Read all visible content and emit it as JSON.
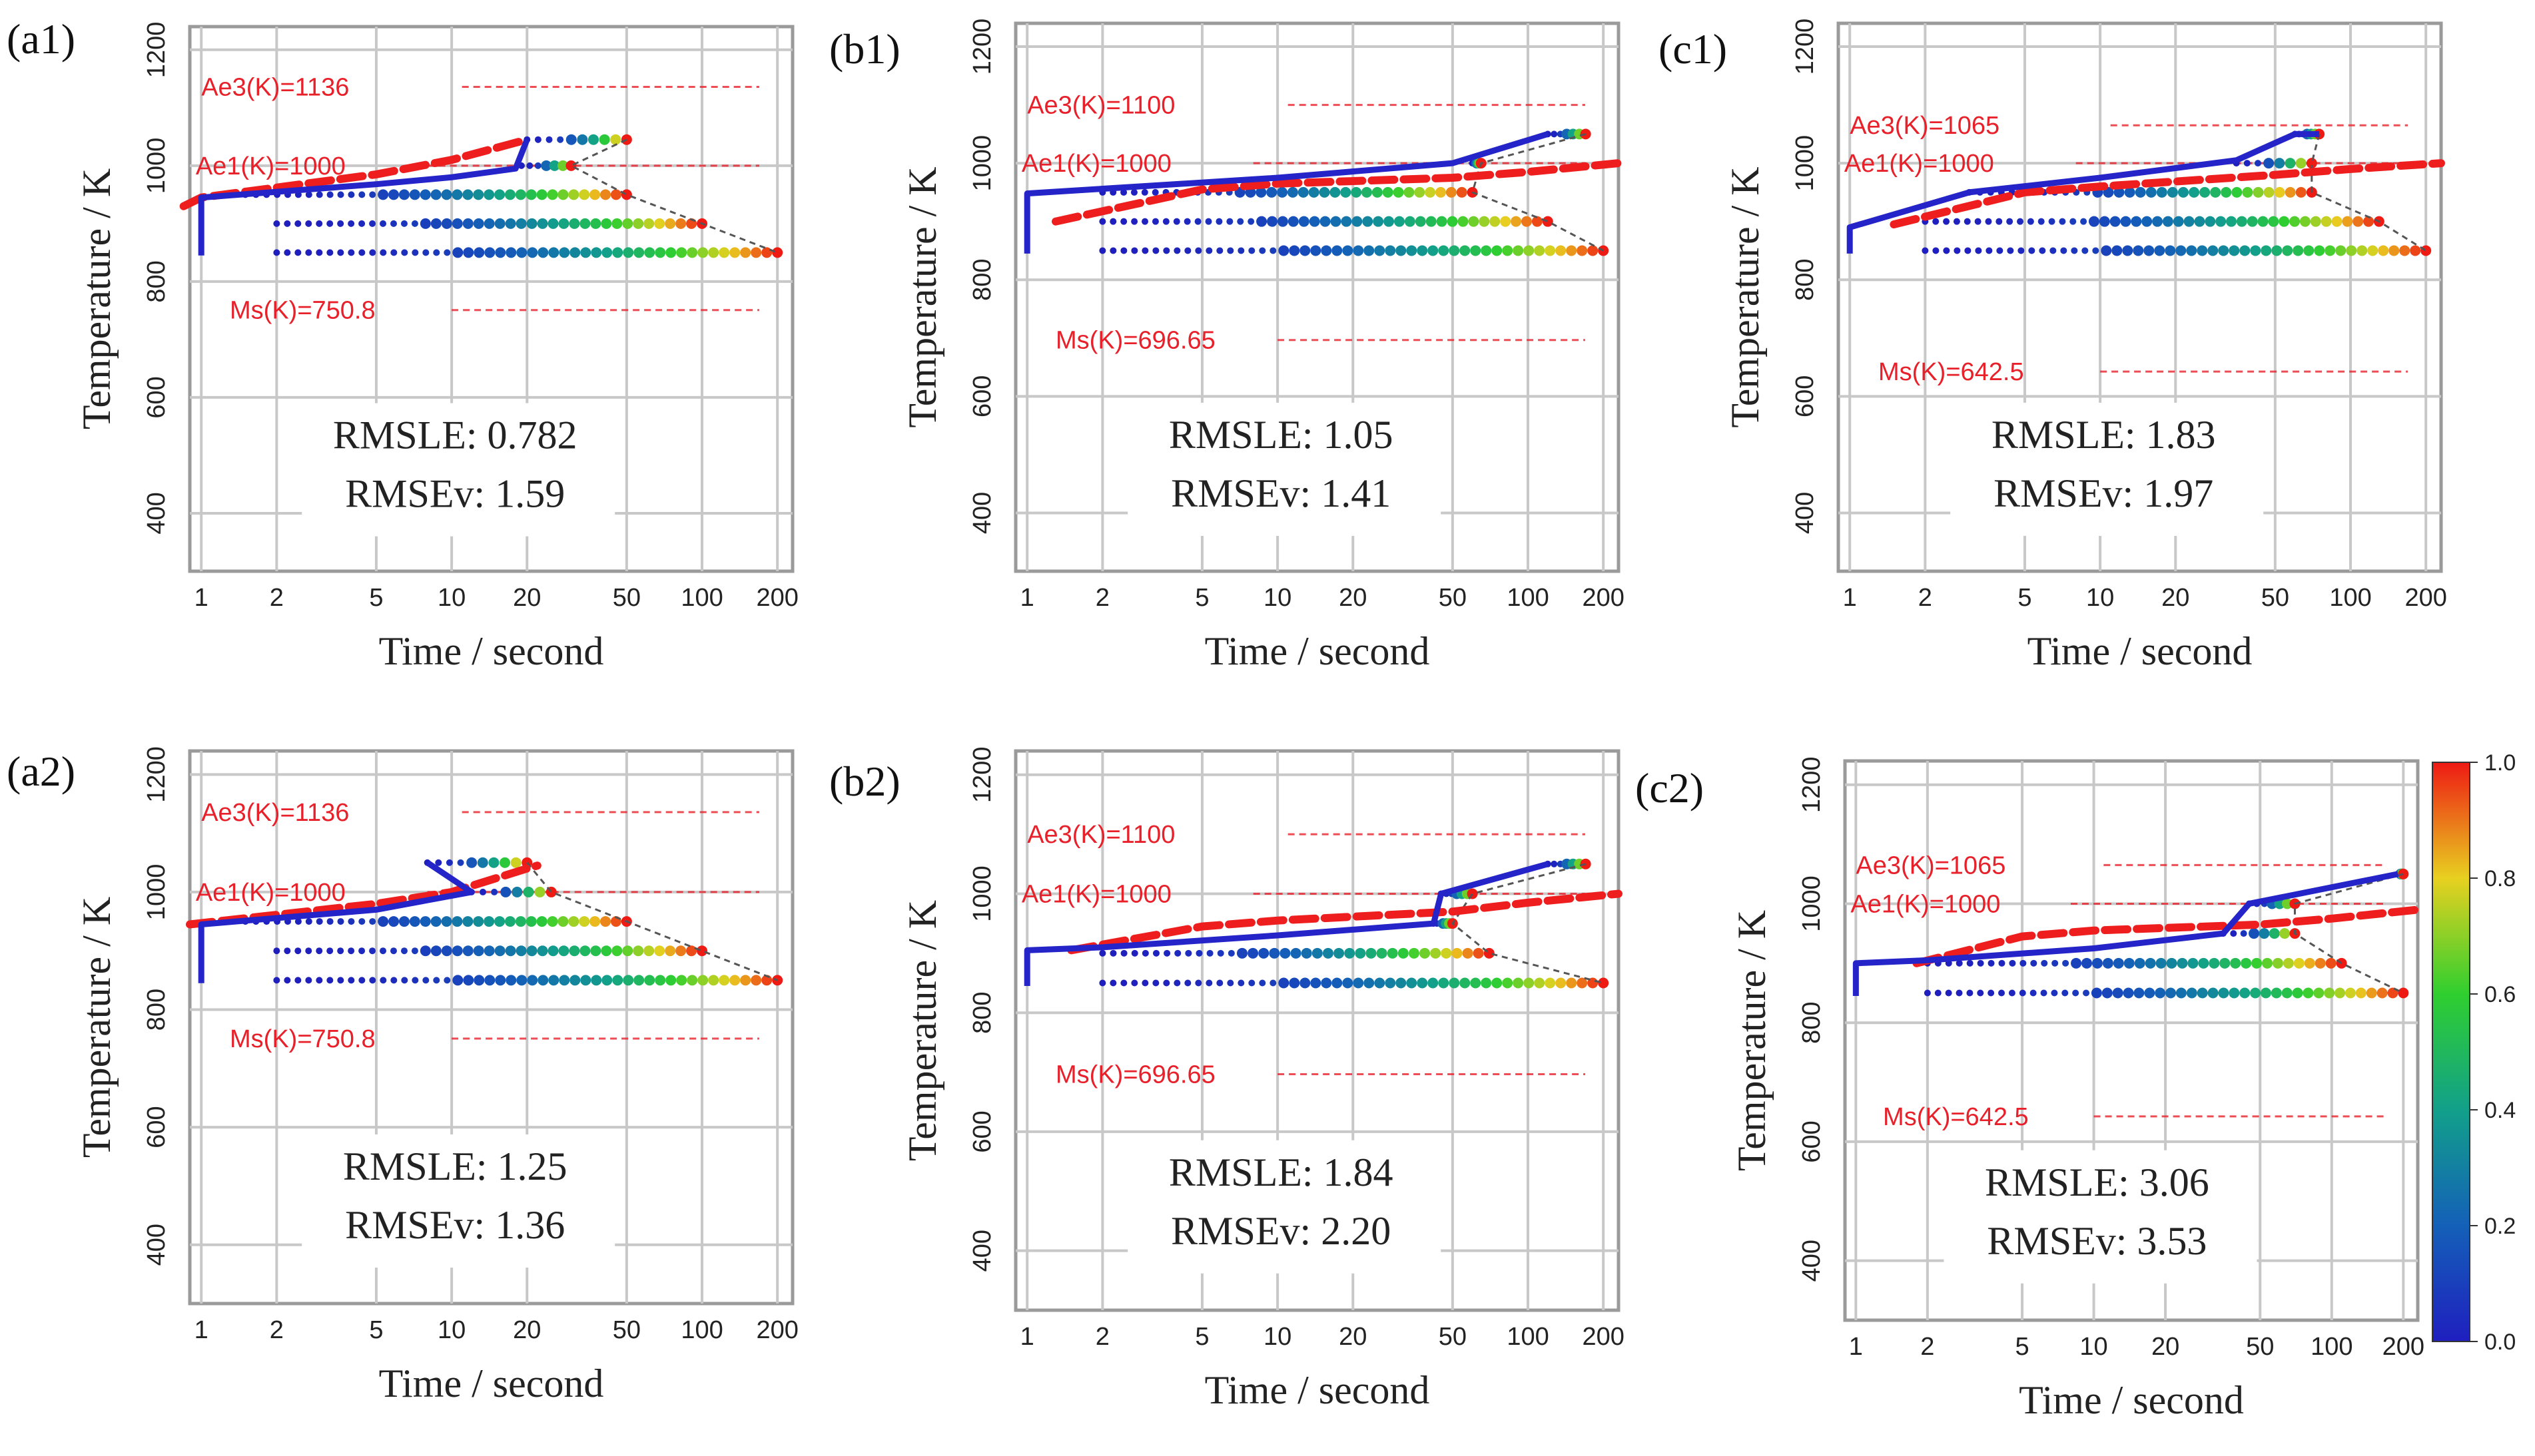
{
  "figure": {
    "x_axis_title": "Time / second",
    "y_axis_title": "Temperature / K",
    "colorbar": {
      "ticks": [
        "0.0",
        "0.2",
        "0.4",
        "0.6",
        "0.8",
        "1.0"
      ],
      "range": [
        0,
        1
      ]
    }
  },
  "chart_data": [
    {
      "type": "line",
      "label": "(a1)",
      "xlim": [
        0.9,
        230
      ],
      "ylim": [
        300,
        1240
      ],
      "x_ticks": [
        1,
        2,
        5,
        10,
        20,
        50,
        100,
        200
      ],
      "x_tick_labels": [
        "1",
        "2",
        "5",
        "10",
        "20",
        "50",
        "100",
        "200"
      ],
      "y_ticks": [
        400,
        600,
        800,
        1000,
        1200
      ],
      "y_tick_labels": [
        "400",
        "600",
        "800",
        "1000",
        "1200"
      ],
      "ae3": {
        "label": "Ae3(K)=1136",
        "value": 1136
      },
      "ae1": {
        "label": "Ae1(K)=1000",
        "value": 1000
      },
      "ms": {
        "label": "Ms(K)=750.8",
        "value": 750.8
      },
      "rmsle": "RMSLE: 0.782",
      "rmsev": "RMSEv: 1.59",
      "red_curve": [
        [
          0.85,
          930
        ],
        [
          1,
          945
        ],
        [
          5,
          985
        ],
        [
          10,
          1010
        ],
        [
          20,
          1045
        ]
      ],
      "blue_curve": [
        [
          1,
          845
        ],
        [
          1,
          945
        ],
        [
          5,
          968
        ],
        [
          10,
          980
        ],
        [
          18,
          995
        ],
        [
          20,
          1045
        ]
      ],
      "transformation_bands": [
        {
          "temp": 1045,
          "t_start": 20,
          "t_end": 50
        },
        {
          "temp": 1000,
          "t_start": 19,
          "t_end": 30
        },
        {
          "temp": 950,
          "t_start": 1.5,
          "t_end": 50
        },
        {
          "temp": 900,
          "t_start": 2,
          "t_end": 100
        },
        {
          "temp": 850,
          "t_start": 2,
          "t_end": 200
        }
      ]
    },
    {
      "type": "line",
      "label": "(b1)",
      "xlim": [
        0.9,
        230
      ],
      "ylim": [
        300,
        1240
      ],
      "x_ticks": [
        1,
        2,
        5,
        10,
        20,
        50,
        100,
        200
      ],
      "x_tick_labels": [
        "1",
        "2",
        "5",
        "10",
        "20",
        "50",
        "100",
        "200"
      ],
      "y_ticks": [
        400,
        600,
        800,
        1000,
        1200
      ],
      "y_tick_labels": [
        "400",
        "600",
        "800",
        "1000",
        "1200"
      ],
      "ae3": {
        "label": "Ae3(K)=1100",
        "value": 1100
      },
      "ae1": {
        "label": "Ae1(K)=1000",
        "value": 1000
      },
      "ms": {
        "label": "Ms(K)=696.65",
        "value": 696.65
      },
      "rmsle": "RMSLE: 1.05",
      "rmsev": "RMSEv: 1.41",
      "red_curve": [
        [
          1.3,
          900
        ],
        [
          5,
          955
        ],
        [
          10,
          965
        ],
        [
          50,
          975
        ],
        [
          100,
          985
        ],
        [
          230,
          1000
        ]
      ],
      "blue_curve": [
        [
          1,
          845
        ],
        [
          1,
          948
        ],
        [
          10,
          975
        ],
        [
          50,
          1000
        ],
        [
          120,
          1050
        ]
      ],
      "transformation_bands": [
        {
          "temp": 1050,
          "t_start": 120,
          "t_end": 170
        },
        {
          "temp": 1000,
          "t_start": 60,
          "t_end": 65
        },
        {
          "temp": 950,
          "t_start": 2,
          "t_end": 60
        },
        {
          "temp": 900,
          "t_start": 2,
          "t_end": 120
        },
        {
          "temp": 850,
          "t_start": 2,
          "t_end": 200
        }
      ]
    },
    {
      "type": "line",
      "label": "(c1)",
      "xlim": [
        0.9,
        230
      ],
      "ylim": [
        300,
        1240
      ],
      "x_ticks": [
        1,
        2,
        5,
        10,
        20,
        50,
        100,
        200
      ],
      "x_tick_labels": [
        "1",
        "2",
        "5",
        "10",
        "20",
        "50",
        "100",
        "200"
      ],
      "y_ticks": [
        400,
        600,
        800,
        1000,
        1200
      ],
      "y_tick_labels": [
        "400",
        "600",
        "800",
        "1000",
        "1200"
      ],
      "ae3": {
        "label": "Ae3(K)=1065",
        "value": 1065
      },
      "ae1": {
        "label": "Ae1(K)=1000",
        "value": 1000
      },
      "ms": {
        "label": "Ms(K)=642.5",
        "value": 642.5
      },
      "rmsle": "RMSLE: 1.83",
      "rmsev": "RMSEv: 1.97",
      "red_curve": [
        [
          1.5,
          895
        ],
        [
          5,
          950
        ],
        [
          10,
          960
        ],
        [
          50,
          980
        ],
        [
          100,
          990
        ],
        [
          230,
          1000
        ]
      ],
      "blue_curve": [
        [
          1,
          845
        ],
        [
          1,
          890
        ],
        [
          3,
          950
        ],
        [
          10,
          975
        ],
        [
          35,
          1005
        ],
        [
          60,
          1050
        ],
        [
          75,
          1050
        ]
      ],
      "transformation_bands": [
        {
          "temp": 1050,
          "t_start": 60,
          "t_end": 75
        },
        {
          "temp": 1000,
          "t_start": 35,
          "t_end": 70
        },
        {
          "temp": 950,
          "t_start": 3,
          "t_end": 70
        },
        {
          "temp": 900,
          "t_start": 2,
          "t_end": 130
        },
        {
          "temp": 850,
          "t_start": 2,
          "t_end": 200
        }
      ]
    },
    {
      "type": "line",
      "label": "(a2)",
      "xlim": [
        0.9,
        230
      ],
      "ylim": [
        300,
        1240
      ],
      "x_ticks": [
        1,
        2,
        5,
        10,
        20,
        50,
        100,
        200
      ],
      "x_tick_labels": [
        "1",
        "2",
        "5",
        "10",
        "20",
        "50",
        "100",
        "200"
      ],
      "y_ticks": [
        400,
        600,
        800,
        1000,
        1200
      ],
      "y_tick_labels": [
        "400",
        "600",
        "800",
        "1000",
        "1200"
      ],
      "ae3": {
        "label": "Ae3(K)=1136",
        "value": 1136
      },
      "ae1": {
        "label": "Ae1(K)=1000",
        "value": 1000
      },
      "ms": {
        "label": "Ms(K)=750.8",
        "value": 750.8
      },
      "rmsle": "RMSLE: 1.25",
      "rmsev": "RMSEv: 1.36",
      "red_curve": [
        [
          0.9,
          945
        ],
        [
          5,
          980
        ],
        [
          10,
          1000
        ],
        [
          20,
          1040
        ],
        [
          22,
          1045
        ]
      ],
      "blue_curve": [
        [
          1,
          845
        ],
        [
          1,
          945
        ],
        [
          5,
          970
        ],
        [
          12,
          1000
        ],
        [
          8,
          1050
        ]
      ],
      "transformation_bands": [
        {
          "temp": 1050,
          "t_start": 8,
          "t_end": 20
        },
        {
          "temp": 1000,
          "t_start": 12,
          "t_end": 25
        },
        {
          "temp": 950,
          "t_start": 1.5,
          "t_end": 50
        },
        {
          "temp": 900,
          "t_start": 2,
          "t_end": 100
        },
        {
          "temp": 850,
          "t_start": 2,
          "t_end": 200
        }
      ]
    },
    {
      "type": "line",
      "label": "(b2)",
      "xlim": [
        0.9,
        230
      ],
      "ylim": [
        300,
        1240
      ],
      "x_ticks": [
        1,
        2,
        5,
        10,
        20,
        50,
        100,
        200
      ],
      "x_tick_labels": [
        "1",
        "2",
        "5",
        "10",
        "20",
        "50",
        "100",
        "200"
      ],
      "y_ticks": [
        400,
        600,
        800,
        1000,
        1200
      ],
      "y_tick_labels": [
        "400",
        "600",
        "800",
        "1000",
        "1200"
      ],
      "ae3": {
        "label": "Ae3(K)=1100",
        "value": 1100
      },
      "ae1": {
        "label": "Ae1(K)=1000",
        "value": 1000
      },
      "ms": {
        "label": "Ms(K)=696.65",
        "value": 696.65
      },
      "rmsle": "RMSLE: 1.84",
      "rmsev": "RMSEv: 2.20",
      "red_curve": [
        [
          1.5,
          905
        ],
        [
          5,
          945
        ],
        [
          10,
          955
        ],
        [
          50,
          970
        ],
        [
          100,
          985
        ],
        [
          230,
          1000
        ]
      ],
      "blue_curve": [
        [
          1,
          845
        ],
        [
          1,
          905
        ],
        [
          2,
          910
        ],
        [
          10,
          930
        ],
        [
          42,
          950
        ],
        [
          45,
          1000
        ],
        [
          120,
          1050
        ]
      ],
      "transformation_bands": [
        {
          "temp": 1050,
          "t_start": 120,
          "t_end": 170
        },
        {
          "temp": 1000,
          "t_start": 45,
          "t_end": 60
        },
        {
          "temp": 950,
          "t_start": 42,
          "t_end": 50
        },
        {
          "temp": 900,
          "t_start": 2,
          "t_end": 70
        },
        {
          "temp": 850,
          "t_start": 2,
          "t_end": 200
        }
      ]
    },
    {
      "type": "line",
      "label": "(c2)",
      "xlim": [
        0.9,
        230
      ],
      "ylim": [
        300,
        1240
      ],
      "x_ticks": [
        1,
        2,
        5,
        10,
        20,
        50,
        100,
        200
      ],
      "x_tick_labels": [
        "1",
        "2",
        "5",
        "10",
        "20",
        "50",
        "100",
        "200"
      ],
      "y_ticks": [
        400,
        600,
        800,
        1000,
        1200
      ],
      "y_tick_labels": [
        "400",
        "600",
        "800",
        "1000",
        "1200"
      ],
      "ae3": {
        "label": "Ae3(K)=1065",
        "value": 1065
      },
      "ae1": {
        "label": "Ae1(K)=1000",
        "value": 1000
      },
      "ms": {
        "label": "Ms(K)=642.5",
        "value": 642.5
      },
      "rmsle": "RMSLE: 3.06",
      "rmsev": "RMSEv: 3.53",
      "red_curve": [
        [
          1.8,
          900
        ],
        [
          5,
          945
        ],
        [
          10,
          955
        ],
        [
          50,
          965
        ],
        [
          100,
          975
        ],
        [
          230,
          990
        ]
      ],
      "blue_curve": [
        [
          1,
          845
        ],
        [
          1,
          900
        ],
        [
          2,
          905
        ],
        [
          10,
          925
        ],
        [
          35,
          950
        ],
        [
          45,
          1000
        ],
        [
          190,
          1050
        ]
      ],
      "transformation_bands": [
        {
          "temp": 1050,
          "t_start": 190,
          "t_end": 200
        },
        {
          "temp": 1000,
          "t_start": 45,
          "t_end": 70
        },
        {
          "temp": 950,
          "t_start": 35,
          "t_end": 70
        },
        {
          "temp": 900,
          "t_start": 2,
          "t_end": 110
        },
        {
          "temp": 850,
          "t_start": 2,
          "t_end": 200
        }
      ]
    }
  ]
}
